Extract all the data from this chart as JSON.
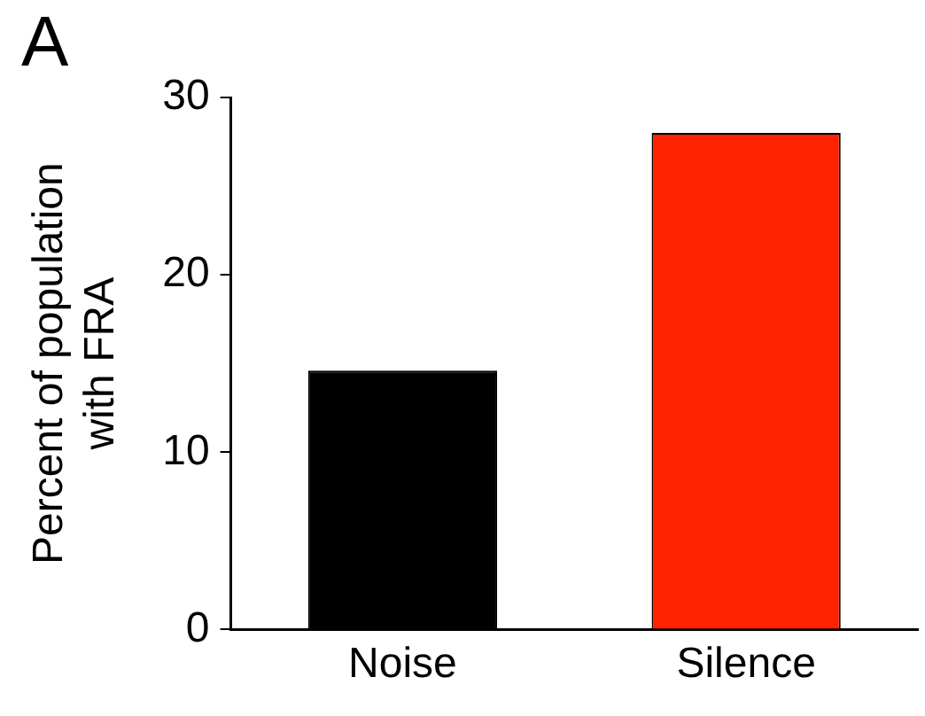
{
  "chart_data": {
    "type": "bar",
    "ylabel": "Percent of population with FRA",
    "annotations": [
      "A"
    ],
    "categories": [
      "Noise",
      "Silence"
    ],
    "values": [
      14.6,
      28
    ],
    "colors": [
      "#000000",
      "#ff2200"
    ],
    "ylim": [
      0,
      30
    ],
    "yticks": [
      0,
      10,
      20,
      30
    ],
    "grid": false,
    "legend": false
  }
}
